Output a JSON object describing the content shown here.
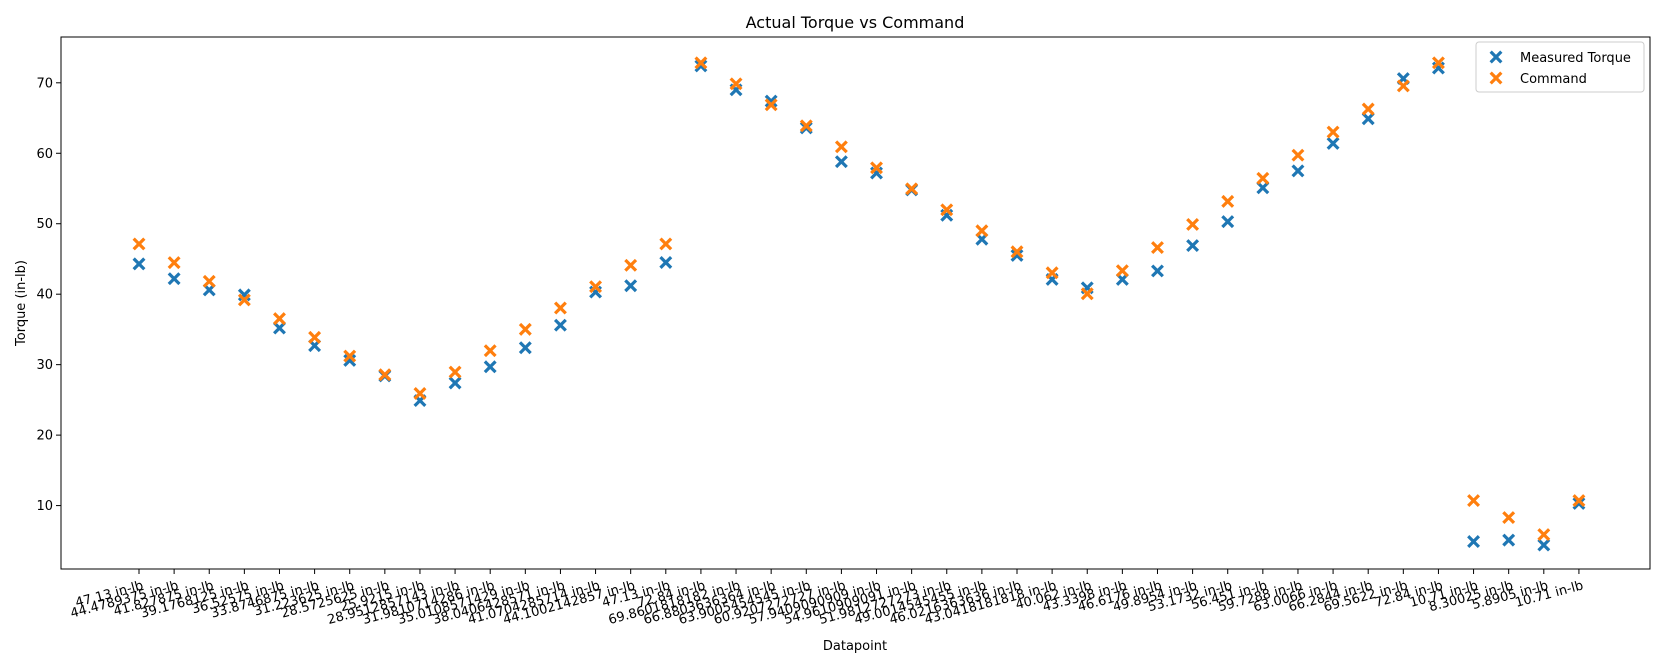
{
  "chart_data": {
    "type": "scatter",
    "title": "Actual Torque vs Command",
    "xlabel": "Datapoint",
    "ylabel": "Torque (in-lb)",
    "ylim": [
      1,
      76.5
    ],
    "yticks": [
      10,
      20,
      30,
      40,
      50,
      60,
      70
    ],
    "grid": false,
    "legend_position": "top-right",
    "categories": [
      "47.13 in-lb",
      "44.4789375 in-lb",
      "41.827875 in-lb",
      "39.1768125 in-lb",
      "36.52575 in-lb",
      "33.8746875 in-lb",
      "31.223625 in-lb",
      "28.5725625 in-lb",
      "25.9215 in-lb",
      "28.9512857143 in-lb",
      "31.9810714286 in-lb",
      "35.0108571429 in-lb",
      "38.0406428571 in-lb",
      "41.0704285714 in-lb",
      "44.1002142857 in-lb",
      "47.13 in-lb",
      "72.84 in-lb",
      "69.8601818182 in-lb",
      "66.8803636364 in-lb",
      "63.9005454545 in-lb",
      "60.9207272727 in-lb",
      "57.9409090909 in-lb",
      "54.9610909091 in-lb",
      "51.9812727273 in-lb",
      "49.0014545455 in-lb",
      "46.0216363636 in-lb",
      "43.0418181818 in-lb",
      "40.062 in-lb",
      "43.3398 in-lb",
      "46.6176 in-lb",
      "49.8954 in-lb",
      "53.1732 in-lb",
      "56.451 in-lb",
      "59.7288 in-lb",
      "63.0066 in-lb",
      "66.2844 in-lb",
      "69.5622 in-lb",
      "72.84 in-lb",
      "10.71 in-lb",
      "8.30025 in-lb",
      "5.8905 in-lb",
      "10.71 in-lb"
    ],
    "series": [
      {
        "name": "Measured Torque",
        "color": "#1f77b4",
        "values": [
          44.3,
          42.2,
          40.6,
          39.9,
          35.2,
          32.7,
          30.6,
          28.4,
          24.9,
          27.4,
          29.7,
          32.4,
          35.6,
          40.3,
          41.2,
          44.5,
          72.4,
          69.0,
          67.4,
          63.6,
          58.8,
          57.2,
          54.8,
          51.2,
          47.8,
          45.5,
          42.1,
          40.9,
          42.1,
          43.3,
          46.9,
          50.3,
          55.1,
          57.5,
          61.4,
          64.9,
          70.6,
          72.1,
          4.9,
          5.1,
          4.4,
          10.3
        ]
      },
      {
        "name": "Command",
        "color": "#ff7f0e",
        "values": [
          47.13,
          44.48,
          41.83,
          39.18,
          36.53,
          33.87,
          31.22,
          28.57,
          25.92,
          28.95,
          31.98,
          35.01,
          38.04,
          41.07,
          44.1,
          47.13,
          72.84,
          69.86,
          66.88,
          63.9,
          60.92,
          57.94,
          54.96,
          51.98,
          49.0,
          46.02,
          43.04,
          40.06,
          43.34,
          46.62,
          49.9,
          53.17,
          56.45,
          59.73,
          63.01,
          66.28,
          69.56,
          72.84,
          10.71,
          8.3,
          5.89,
          10.71
        ]
      }
    ]
  }
}
